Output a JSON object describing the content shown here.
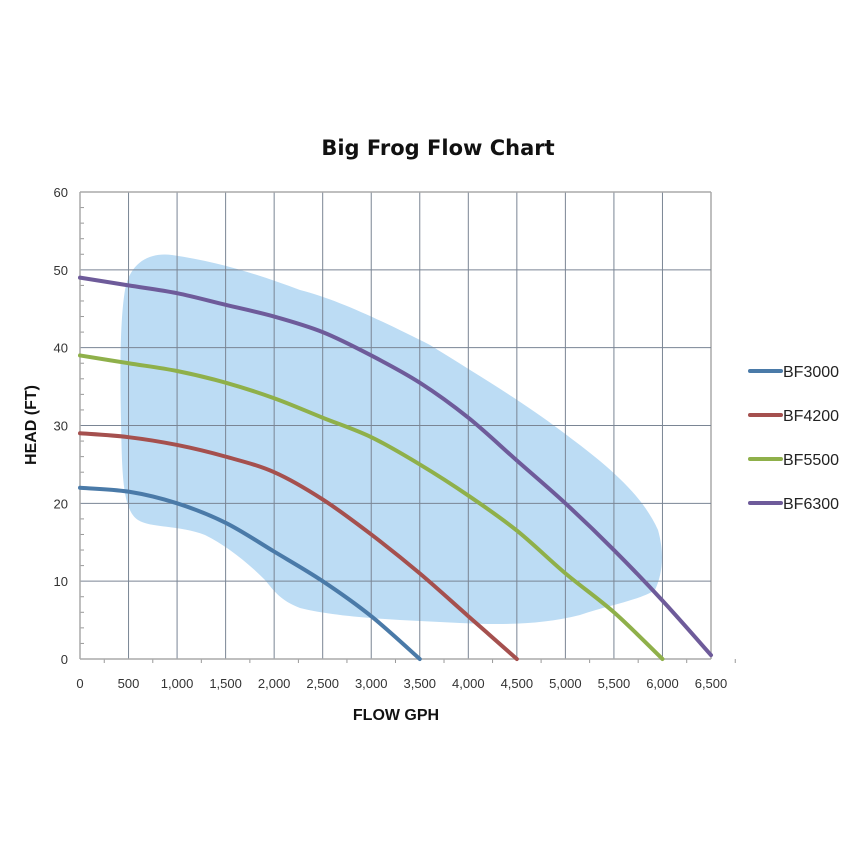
{
  "chart_data": {
    "type": "line",
    "title": "Big Frog Flow Chart",
    "xlabel": "FLOW GPH",
    "ylabel": "HEAD (FT)",
    "xlim": [
      0,
      6500
    ],
    "ylim": [
      0,
      60
    ],
    "x_ticks": [
      0,
      500,
      1000,
      1500,
      2000,
      2500,
      3000,
      3500,
      4000,
      4500,
      5000,
      5500,
      6000,
      6500
    ],
    "x_tick_labels": [
      "0",
      "500",
      "1,000",
      "1,500",
      "2,000",
      "2,500",
      "3,000",
      "3,500",
      "4,000",
      "4,500",
      "5,000",
      "5,500",
      "6,000",
      "6,500"
    ],
    "y_ticks": [
      0,
      10,
      20,
      30,
      40,
      50,
      60
    ],
    "y_tick_labels": [
      "0",
      "10",
      "20",
      "30",
      "40",
      "50",
      "60"
    ],
    "grid": true,
    "legend_position": "right",
    "shaded_region": {
      "description": "light blue optimal operating region",
      "color": "#bcdcf4"
    },
    "series": [
      {
        "name": "BF3000",
        "color": "#4a7aa8",
        "x": [
          0,
          500,
          1000,
          1500,
          2000,
          2500,
          3000,
          3500
        ],
        "y": [
          22,
          21.5,
          20,
          17.5,
          13.8,
          10,
          5.5,
          0
        ]
      },
      {
        "name": "BF4200",
        "color": "#a5504e",
        "x": [
          0,
          500,
          1000,
          1500,
          2000,
          2500,
          3000,
          3500,
          4000,
          4500
        ],
        "y": [
          29,
          28.5,
          27.5,
          26,
          24,
          20.5,
          16,
          11,
          5.5,
          0
        ]
      },
      {
        "name": "BF5500",
        "color": "#8fb04a",
        "x": [
          0,
          500,
          1000,
          1500,
          2000,
          2500,
          3000,
          3500,
          4000,
          4500,
          5000,
          5500,
          6000
        ],
        "y": [
          39,
          38,
          37,
          35.5,
          33.5,
          31,
          28.5,
          25,
          21,
          16.5,
          11,
          6,
          0
        ]
      },
      {
        "name": "BF6300",
        "color": "#6e5b9a",
        "x": [
          0,
          500,
          1000,
          1500,
          2000,
          2500,
          3000,
          3500,
          4000,
          4500,
          5000,
          5500,
          6000,
          6500
        ],
        "y": [
          49,
          48,
          47,
          45.5,
          44,
          42,
          39,
          35.5,
          31,
          25.5,
          20,
          14,
          7.5,
          0.5
        ]
      }
    ]
  }
}
